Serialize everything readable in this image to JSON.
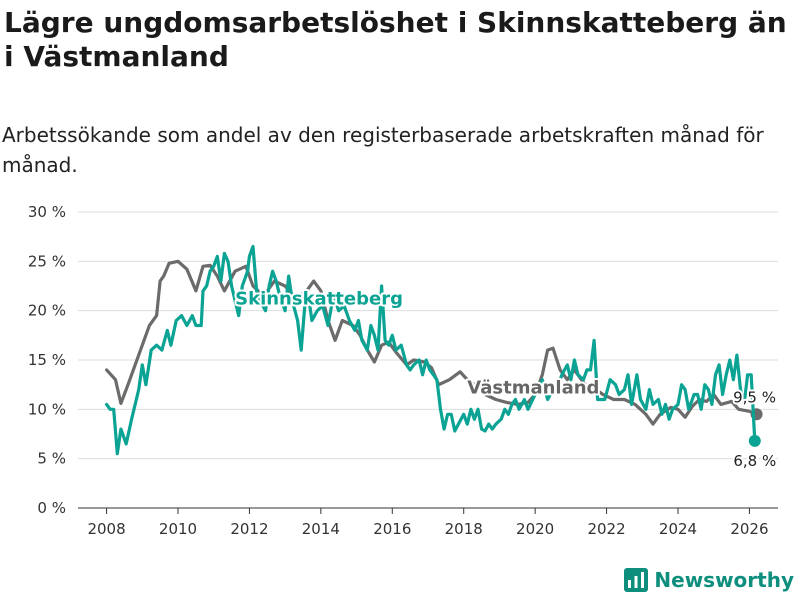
{
  "header": {
    "title": "Lägre ungdomsarbetslöshet i Skinnskatteberg än i Västmanland",
    "subtitle": "Arbetssökande som andel av den registerbaserade arbetskraften månad för månad."
  },
  "brand": {
    "name": "Newsworthy",
    "icon": "bar-chart-icon",
    "color": "#0e8f7e"
  },
  "colors": {
    "skinnskatteberg": "#0aa394",
    "vastmanland": "#6b6b6b",
    "grid": "#dddddd"
  },
  "chart_data": {
    "type": "line",
    "title": "Lägre ungdomsarbetslöshet i Skinnskatteberg än i Västmanland",
    "xlabel": "",
    "ylabel": "",
    "xlim": [
      2007.2,
      2026.8
    ],
    "ylim": [
      0,
      30
    ],
    "yticks": [
      0,
      5,
      10,
      15,
      20,
      25,
      30
    ],
    "ytick_labels": [
      "0 %",
      "5 %",
      "10 %",
      "15 %",
      "20 %",
      "25 %",
      "30 %"
    ],
    "xticks": [
      2008,
      2010,
      2012,
      2014,
      2016,
      2018,
      2020,
      2022,
      2024,
      2026
    ],
    "xtick_labels": [
      "2008",
      "2010",
      "2012",
      "2014",
      "2016",
      "2018",
      "2020",
      "2022",
      "2024",
      "2026"
    ],
    "grid": true,
    "series": [
      {
        "name": "Västmanland",
        "label": "Västmanland",
        "color": "#6b6b6b",
        "end_value": 9.5,
        "end_label": "9,5 %",
        "points": [
          [
            2008.0,
            14.0
          ],
          [
            2008.25,
            13.0
          ],
          [
            2008.4,
            10.6
          ],
          [
            2008.6,
            12.5
          ],
          [
            2008.9,
            15.5
          ],
          [
            2009.2,
            18.5
          ],
          [
            2009.4,
            19.5
          ],
          [
            2009.5,
            23.0
          ],
          [
            2009.6,
            23.5
          ],
          [
            2009.75,
            24.8
          ],
          [
            2010.0,
            25.0
          ],
          [
            2010.25,
            24.2
          ],
          [
            2010.5,
            22.0
          ],
          [
            2010.7,
            24.5
          ],
          [
            2010.9,
            24.6
          ],
          [
            2011.1,
            23.5
          ],
          [
            2011.3,
            22.0
          ],
          [
            2011.6,
            24.0
          ],
          [
            2011.9,
            24.5
          ],
          [
            2012.1,
            22.5
          ],
          [
            2012.4,
            21.5
          ],
          [
            2012.7,
            23.0
          ],
          [
            2013.0,
            22.5
          ],
          [
            2013.3,
            21.2
          ],
          [
            2013.6,
            22.0
          ],
          [
            2013.8,
            23.0
          ],
          [
            2014.0,
            22.0
          ],
          [
            2014.2,
            19.0
          ],
          [
            2014.4,
            17.0
          ],
          [
            2014.6,
            19.0
          ],
          [
            2014.9,
            18.5
          ],
          [
            2015.1,
            17.5
          ],
          [
            2015.3,
            16.0
          ],
          [
            2015.5,
            14.8
          ],
          [
            2015.7,
            16.5
          ],
          [
            2015.9,
            16.8
          ],
          [
            2016.1,
            15.8
          ],
          [
            2016.4,
            14.5
          ],
          [
            2016.6,
            15.0
          ],
          [
            2016.9,
            14.8
          ],
          [
            2017.1,
            14.2
          ],
          [
            2017.3,
            12.5
          ],
          [
            2017.6,
            13.0
          ],
          [
            2017.9,
            13.8
          ],
          [
            2018.1,
            13.0
          ],
          [
            2018.3,
            12.5
          ],
          [
            2018.6,
            11.5
          ],
          [
            2018.9,
            11.0
          ],
          [
            2019.2,
            10.7
          ],
          [
            2019.5,
            10.5
          ],
          [
            2019.8,
            10.7
          ],
          [
            2020.0,
            11.5
          ],
          [
            2020.2,
            13.5
          ],
          [
            2020.35,
            16.0
          ],
          [
            2020.5,
            16.2
          ],
          [
            2020.7,
            14.0
          ],
          [
            2020.9,
            13.0
          ],
          [
            2021.1,
            14.0
          ],
          [
            2021.4,
            12.5
          ],
          [
            2021.7,
            12.0
          ],
          [
            2021.9,
            11.5
          ],
          [
            2022.2,
            11.0
          ],
          [
            2022.5,
            11.0
          ],
          [
            2022.8,
            10.5
          ],
          [
            2023.1,
            9.5
          ],
          [
            2023.3,
            8.5
          ],
          [
            2023.5,
            9.5
          ],
          [
            2023.8,
            10.2
          ],
          [
            2024.0,
            10.0
          ],
          [
            2024.2,
            9.2
          ],
          [
            2024.4,
            10.3
          ],
          [
            2024.6,
            11.0
          ],
          [
            2024.8,
            10.8
          ],
          [
            2025.0,
            11.5
          ],
          [
            2025.2,
            10.5
          ],
          [
            2025.5,
            10.8
          ],
          [
            2025.7,
            10.0
          ],
          [
            2026.0,
            9.8
          ],
          [
            2026.2,
            9.5
          ]
        ]
      },
      {
        "name": "Skinnskatteberg",
        "label": "Skinnskatteberg",
        "color": "#0aa394",
        "end_value": 6.8,
        "end_label": "6,8 %",
        "points": [
          [
            2008.0,
            10.5
          ],
          [
            2008.1,
            10.0
          ],
          [
            2008.2,
            10.0
          ],
          [
            2008.3,
            5.5
          ],
          [
            2008.4,
            8.0
          ],
          [
            2008.55,
            6.5
          ],
          [
            2008.7,
            9.0
          ],
          [
            2008.9,
            12.0
          ],
          [
            2009.0,
            14.5
          ],
          [
            2009.1,
            12.5
          ],
          [
            2009.25,
            16.0
          ],
          [
            2009.4,
            16.5
          ],
          [
            2009.55,
            16.0
          ],
          [
            2009.7,
            18.0
          ],
          [
            2009.8,
            16.5
          ],
          [
            2009.95,
            19.0
          ],
          [
            2010.1,
            19.5
          ],
          [
            2010.25,
            18.5
          ],
          [
            2010.4,
            19.5
          ],
          [
            2010.5,
            18.5
          ],
          [
            2010.65,
            18.5
          ],
          [
            2010.7,
            22.0
          ],
          [
            2010.8,
            22.5
          ],
          [
            2010.9,
            24.0
          ],
          [
            2011.0,
            24.5
          ],
          [
            2011.1,
            25.5
          ],
          [
            2011.2,
            23.0
          ],
          [
            2011.3,
            25.8
          ],
          [
            2011.4,
            25.0
          ],
          [
            2011.5,
            22.5
          ],
          [
            2011.6,
            21.0
          ],
          [
            2011.7,
            19.5
          ],
          [
            2011.8,
            22.5
          ],
          [
            2011.95,
            24.0
          ],
          [
            2012.0,
            25.5
          ],
          [
            2012.1,
            26.5
          ],
          [
            2012.2,
            22.0
          ],
          [
            2012.3,
            21.0
          ],
          [
            2012.45,
            20.0
          ],
          [
            2012.55,
            22.5
          ],
          [
            2012.65,
            24.0
          ],
          [
            2012.75,
            23.0
          ],
          [
            2012.85,
            21.5
          ],
          [
            2013.0,
            20.0
          ],
          [
            2013.1,
            23.5
          ],
          [
            2013.2,
            21.0
          ],
          [
            2013.35,
            19.0
          ],
          [
            2013.45,
            16.0
          ],
          [
            2013.55,
            20.5
          ],
          [
            2013.65,
            21.5
          ],
          [
            2013.75,
            19.0
          ],
          [
            2013.9,
            20.0
          ],
          [
            2014.05,
            20.5
          ],
          [
            2014.2,
            18.5
          ],
          [
            2014.35,
            21.5
          ],
          [
            2014.5,
            20.0
          ],
          [
            2014.65,
            20.5
          ],
          [
            2014.8,
            19.0
          ],
          [
            2014.95,
            18.0
          ],
          [
            2015.05,
            19.0
          ],
          [
            2015.15,
            17.0
          ],
          [
            2015.3,
            16.0
          ],
          [
            2015.4,
            18.5
          ],
          [
            2015.5,
            17.5
          ],
          [
            2015.6,
            16.0
          ],
          [
            2015.7,
            22.5
          ],
          [
            2015.8,
            17.0
          ],
          [
            2015.9,
            16.5
          ],
          [
            2016.0,
            17.5
          ],
          [
            2016.1,
            16.0
          ],
          [
            2016.25,
            16.5
          ],
          [
            2016.4,
            14.5
          ],
          [
            2016.5,
            14.0
          ],
          [
            2016.6,
            14.5
          ],
          [
            2016.75,
            15.0
          ],
          [
            2016.85,
            13.5
          ],
          [
            2016.95,
            15.0
          ],
          [
            2017.05,
            14.0
          ],
          [
            2017.15,
            13.5
          ],
          [
            2017.25,
            13.0
          ],
          [
            2017.35,
            10.0
          ],
          [
            2017.45,
            8.0
          ],
          [
            2017.55,
            9.5
          ],
          [
            2017.65,
            9.5
          ],
          [
            2017.75,
            7.8
          ],
          [
            2017.85,
            8.5
          ],
          [
            2018.0,
            9.5
          ],
          [
            2018.1,
            8.5
          ],
          [
            2018.2,
            10.0
          ],
          [
            2018.3,
            9.0
          ],
          [
            2018.4,
            10.0
          ],
          [
            2018.5,
            8.0
          ],
          [
            2018.6,
            7.8
          ],
          [
            2018.7,
            8.5
          ],
          [
            2018.8,
            8.0
          ],
          [
            2018.9,
            8.5
          ],
          [
            2019.05,
            9.0
          ],
          [
            2019.15,
            10.0
          ],
          [
            2019.25,
            9.5
          ],
          [
            2019.35,
            10.5
          ],
          [
            2019.45,
            11.0
          ],
          [
            2019.55,
            10.0
          ],
          [
            2019.7,
            11.0
          ],
          [
            2019.8,
            10.0
          ],
          [
            2020.0,
            11.5
          ],
          [
            2020.2,
            13.0
          ],
          [
            2020.35,
            11.0
          ],
          [
            2020.5,
            12.0
          ],
          [
            2020.65,
            12.5
          ],
          [
            2020.75,
            13.5
          ],
          [
            2020.9,
            14.5
          ],
          [
            2021.0,
            13.0
          ],
          [
            2021.1,
            15.0
          ],
          [
            2021.2,
            13.5
          ],
          [
            2021.35,
            13.0
          ],
          [
            2021.45,
            14.0
          ],
          [
            2021.55,
            14.0
          ],
          [
            2021.65,
            17.0
          ],
          [
            2021.75,
            11.0
          ],
          [
            2021.85,
            11.0
          ],
          [
            2021.95,
            11.0
          ],
          [
            2022.1,
            13.0
          ],
          [
            2022.25,
            12.5
          ],
          [
            2022.35,
            11.5
          ],
          [
            2022.5,
            12.0
          ],
          [
            2022.6,
            13.5
          ],
          [
            2022.7,
            10.5
          ],
          [
            2022.85,
            13.5
          ],
          [
            2022.95,
            11.0
          ],
          [
            2023.1,
            10.0
          ],
          [
            2023.2,
            12.0
          ],
          [
            2023.3,
            10.5
          ],
          [
            2023.45,
            11.0
          ],
          [
            2023.55,
            9.5
          ],
          [
            2023.65,
            10.5
          ],
          [
            2023.75,
            9.0
          ],
          [
            2023.85,
            10.0
          ],
          [
            2024.0,
            10.5
          ],
          [
            2024.1,
            12.5
          ],
          [
            2024.2,
            12.0
          ],
          [
            2024.3,
            10.0
          ],
          [
            2024.45,
            11.5
          ],
          [
            2024.55,
            11.5
          ],
          [
            2024.65,
            10.0
          ],
          [
            2024.75,
            12.5
          ],
          [
            2024.85,
            12.0
          ],
          [
            2024.95,
            10.5
          ],
          [
            2025.05,
            13.5
          ],
          [
            2025.15,
            14.5
          ],
          [
            2025.25,
            11.5
          ],
          [
            2025.35,
            13.5
          ],
          [
            2025.45,
            15.0
          ],
          [
            2025.55,
            13.0
          ],
          [
            2025.65,
            15.5
          ],
          [
            2025.75,
            12.0
          ],
          [
            2025.85,
            10.5
          ],
          [
            2025.95,
            13.5
          ],
          [
            2026.05,
            13.5
          ],
          [
            2026.15,
            6.8
          ]
        ]
      }
    ]
  }
}
